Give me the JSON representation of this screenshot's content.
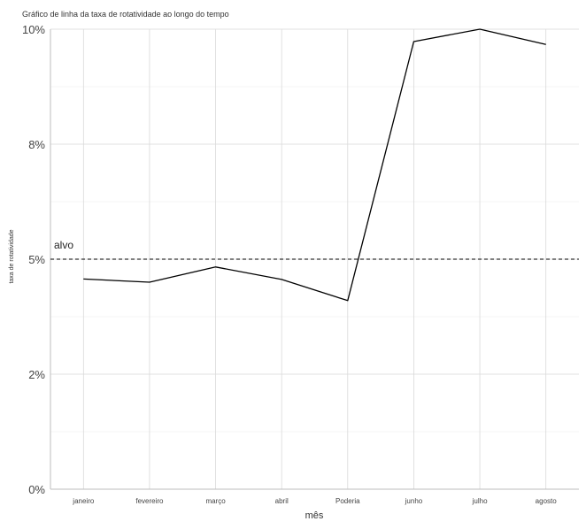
{
  "chart_data": {
    "type": "line",
    "title": "Gráfico de linha da taxa de rotatividade ao longo do tempo",
    "xlabel": "mês",
    "ylabel": "taxa de rotatividade",
    "categories": [
      "janeiro",
      "fevereiro",
      "março",
      "abril",
      "Poderia",
      "junho",
      "julho",
      "agosto"
    ],
    "series": [
      {
        "values": [
          4.57,
          4.5,
          4.83,
          4.56,
          4.1,
          9.73,
          10.0,
          9.67
        ],
        "color": "#000000"
      }
    ],
    "ylim": [
      0,
      10
    ],
    "yticks": [
      0,
      2.5,
      5,
      7.5,
      10
    ],
    "ytick_labels": [
      "0%",
      "2%",
      "5%",
      "8%",
      "10%"
    ],
    "reference_line": {
      "value": 5,
      "label": "alvo",
      "style": "dashed"
    },
    "grid": true,
    "legend": "none"
  }
}
